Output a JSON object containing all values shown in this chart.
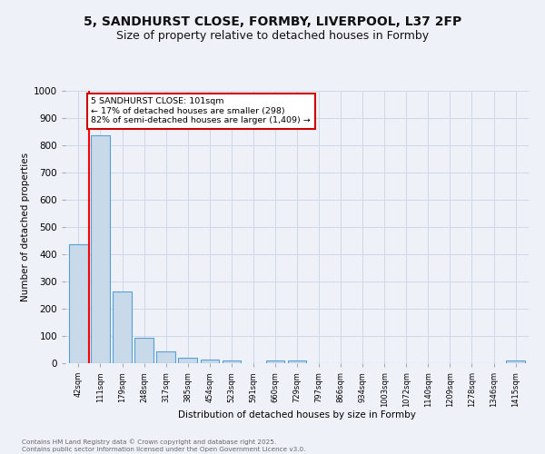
{
  "title": "5, SANDHURST CLOSE, FORMBY, LIVERPOOL, L37 2FP",
  "subtitle": "Size of property relative to detached houses in Formby",
  "xlabel": "Distribution of detached houses by size in Formby",
  "ylabel": "Number of detached properties",
  "bins": [
    "42sqm",
    "111sqm",
    "179sqm",
    "248sqm",
    "317sqm",
    "385sqm",
    "454sqm",
    "523sqm",
    "591sqm",
    "660sqm",
    "729sqm",
    "797sqm",
    "866sqm",
    "934sqm",
    "1003sqm",
    "1072sqm",
    "1140sqm",
    "1209sqm",
    "1278sqm",
    "1346sqm",
    "1415sqm"
  ],
  "values": [
    438,
    838,
    265,
    95,
    45,
    20,
    15,
    10,
    0,
    10,
    10,
    0,
    0,
    0,
    0,
    0,
    0,
    0,
    0,
    0,
    10
  ],
  "bar_color": "#c8d9ea",
  "bar_edge_color": "#5a9fd4",
  "red_line_x": 0.575,
  "annotation_text": "5 SANDHURST CLOSE: 101sqm\n← 17% of detached houses are smaller (298)\n82% of semi-detached houses are larger (1,409) →",
  "annotation_box_color": "#ffffff",
  "annotation_box_edge": "#cc0000",
  "ylim": [
    0,
    1000
  ],
  "yticks": [
    0,
    100,
    200,
    300,
    400,
    500,
    600,
    700,
    800,
    900,
    1000
  ],
  "grid_color": "#d0d8e8",
  "footer_line1": "Contains HM Land Registry data © Crown copyright and database right 2025.",
  "footer_line2": "Contains public sector information licensed under the Open Government Licence v3.0.",
  "bg_color": "#eef2f8",
  "title_fontsize": 10,
  "subtitle_fontsize": 9
}
